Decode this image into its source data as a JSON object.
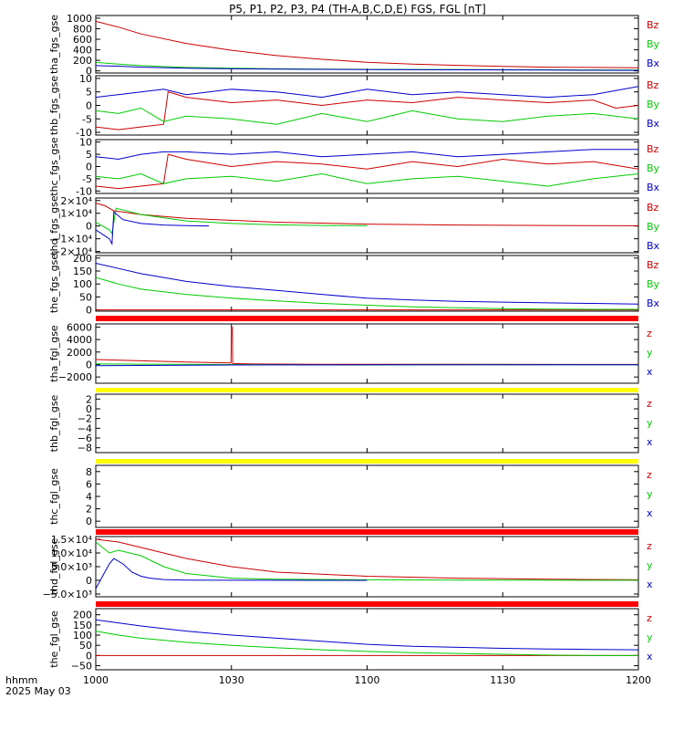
{
  "title": "P5, P1, P2, P3, P4 (TH-A,B,C,D,E) FGS, FGL [nT]",
  "time_axis": {
    "label_top": "hhmm",
    "label_bottom": "2025 May 03",
    "ticks": [
      "1000",
      "1030",
      "1100",
      "1130",
      "1200"
    ],
    "tick_values_min": [
      0,
      30,
      60,
      90,
      120
    ],
    "range_min": [
      0,
      120
    ]
  },
  "colors": {
    "z": "#cc0000",
    "y": "#00cc00",
    "x": "#0000cc",
    "red_bar": "#ff0000",
    "yellow_bar": "#ffff00"
  },
  "chart_data": [
    {
      "type": "line",
      "id": "tha_fgs",
      "ylabel": "tha_fgs_gse",
      "legend": [
        "Bz",
        "By",
        "Bx"
      ],
      "ylim": [
        -40,
        1050
      ],
      "yticks": [
        0,
        200,
        400,
        600,
        800,
        1000
      ],
      "ytick_labels": [
        "0",
        "200",
        "400",
        "600",
        "800",
        "1000"
      ],
      "series": [
        {
          "name": "Bz",
          "color": "z",
          "x": [
            0,
            5,
            10,
            20,
            30,
            40,
            50,
            60,
            70,
            80,
            90,
            100,
            110,
            120
          ],
          "y": [
            940,
            830,
            700,
            520,
            390,
            290,
            220,
            165,
            130,
            105,
            85,
            70,
            65,
            60
          ]
        },
        {
          "name": "By",
          "color": "y",
          "x": [
            0,
            5,
            10,
            20,
            30,
            40,
            50,
            60,
            70,
            80,
            90,
            100,
            110,
            120
          ],
          "y": [
            160,
            130,
            100,
            65,
            50,
            40,
            35,
            30,
            28,
            25,
            22,
            20,
            18,
            15
          ]
        },
        {
          "name": "Bx",
          "color": "x",
          "x": [
            0,
            5,
            10,
            20,
            30,
            40,
            50,
            60,
            70,
            80,
            90,
            100,
            110,
            120
          ],
          "y": [
            100,
            90,
            70,
            50,
            40,
            35,
            30,
            25,
            22,
            20,
            18,
            15,
            12,
            10
          ]
        }
      ]
    },
    {
      "type": "line",
      "id": "thb_fgs",
      "ylabel": "thb_fgs_gse",
      "legend": [
        "Bz",
        "By",
        "Bx"
      ],
      "ylim": [
        -11,
        11
      ],
      "yticks": [
        -10,
        -5,
        0,
        5,
        10
      ],
      "ytick_labels": [
        "-10",
        "-5",
        "0",
        "5",
        "10"
      ],
      "series": [
        {
          "name": "Bz",
          "color": "z",
          "x": [
            0,
            5,
            10,
            15,
            16,
            20,
            30,
            40,
            50,
            60,
            70,
            80,
            90,
            100,
            110,
            115,
            120
          ],
          "y": [
            -8,
            -9,
            -8,
            -7,
            5,
            3,
            1,
            2,
            0,
            2,
            1,
            3,
            2,
            1,
            2,
            -1,
            0
          ]
        },
        {
          "name": "By",
          "color": "y",
          "x": [
            0,
            5,
            10,
            15,
            20,
            30,
            40,
            50,
            60,
            70,
            80,
            90,
            100,
            110,
            120
          ],
          "y": [
            -2,
            -3,
            -1,
            -6,
            -4,
            -5,
            -7,
            -3,
            -6,
            -2,
            -5,
            -6,
            -4,
            -3,
            -5
          ]
        },
        {
          "name": "Bx",
          "color": "x",
          "x": [
            0,
            5,
            10,
            15,
            20,
            30,
            40,
            50,
            60,
            70,
            80,
            90,
            100,
            110,
            120
          ],
          "y": [
            3,
            4,
            5,
            6,
            4,
            6,
            5,
            3,
            6,
            4,
            5,
            4,
            3,
            4,
            7
          ]
        }
      ]
    },
    {
      "type": "line",
      "id": "thc_fgs",
      "ylabel": "thc_fgs_gse",
      "legend": [
        "Bz",
        "By",
        "Bx"
      ],
      "ylim": [
        -11,
        11
      ],
      "yticks": [
        -10,
        -5,
        0,
        5,
        10
      ],
      "ytick_labels": [
        "-10",
        "-5",
        "0",
        "5",
        "10"
      ],
      "series": [
        {
          "name": "Bz",
          "color": "z",
          "x": [
            0,
            5,
            10,
            15,
            16,
            20,
            30,
            40,
            50,
            60,
            70,
            80,
            90,
            100,
            110,
            120
          ],
          "y": [
            -8,
            -9,
            -8,
            -7,
            5,
            3,
            0,
            2,
            1,
            -1,
            2,
            0,
            3,
            1,
            2,
            -1
          ]
        },
        {
          "name": "By",
          "color": "y",
          "x": [
            0,
            5,
            10,
            15,
            20,
            30,
            40,
            50,
            60,
            70,
            80,
            90,
            100,
            110,
            120
          ],
          "y": [
            -4,
            -5,
            -3,
            -7,
            -5,
            -4,
            -6,
            -3,
            -7,
            -5,
            -4,
            -6,
            -8,
            -5,
            -3
          ]
        },
        {
          "name": "Bx",
          "color": "x",
          "x": [
            0,
            5,
            10,
            15,
            20,
            30,
            40,
            50,
            60,
            70,
            80,
            90,
            100,
            110,
            120
          ],
          "y": [
            4,
            3,
            5,
            6,
            6,
            5,
            6,
            4,
            5,
            6,
            4,
            5,
            6,
            7,
            7
          ]
        }
      ]
    },
    {
      "type": "line",
      "id": "thd_fgs",
      "ylabel": "thd_fgs_gse",
      "legend": [
        "Bz",
        "By",
        "Bx"
      ],
      "ylim": [
        -21000,
        22000
      ],
      "yticks": [
        -20000,
        -10000,
        0,
        10000,
        20000
      ],
      "ytick_labels": [
        "−2×10⁴",
        "−1×10⁴",
        "0",
        "1×10⁴",
        "2×10⁴"
      ],
      "series": [
        {
          "name": "Bz",
          "color": "z",
          "x": [
            0,
            2,
            4,
            10,
            20,
            40,
            60,
            80,
            100,
            120
          ],
          "y": [
            18000,
            16000,
            12000,
            9000,
            6000,
            3000,
            1500,
            800,
            400,
            200
          ]
        },
        {
          "name": "By",
          "color": "y",
          "x": [
            0,
            3,
            3.6,
            4.5,
            10,
            20,
            30,
            40,
            50,
            60
          ],
          "y": [
            3000,
            -3000,
            -6000,
            14000,
            9000,
            4000,
            2000,
            900,
            400,
            200
          ]
        },
        {
          "name": "Bx",
          "color": "x",
          "x": [
            0,
            3,
            3.6,
            4,
            6,
            10,
            15,
            20,
            25
          ],
          "y": [
            -3000,
            -10000,
            -14000,
            11000,
            5000,
            2000,
            800,
            300,
            100
          ]
        }
      ]
    },
    {
      "type": "line",
      "id": "the_fgs",
      "ylabel": "the_fgs_gse",
      "legend": [
        "Bz",
        "By",
        "Bx"
      ],
      "ylim": [
        -5,
        210
      ],
      "yticks": [
        0,
        50,
        100,
        150,
        200
      ],
      "ytick_labels": [
        "0",
        "50",
        "100",
        "150",
        "200"
      ],
      "series": [
        {
          "name": "Bz",
          "color": "z",
          "x": [
            0,
            120
          ],
          "y": [
            0,
            0
          ]
        },
        {
          "name": "By",
          "color": "y",
          "x": [
            0,
            5,
            10,
            20,
            30,
            40,
            50,
            60,
            70,
            80,
            90,
            100,
            110,
            120
          ],
          "y": [
            125,
            100,
            80,
            60,
            45,
            35,
            25,
            18,
            12,
            8,
            5,
            3,
            2,
            2
          ]
        },
        {
          "name": "Bx",
          "color": "x",
          "x": [
            0,
            5,
            10,
            20,
            30,
            40,
            50,
            60,
            70,
            80,
            90,
            100,
            110,
            120
          ],
          "y": [
            180,
            160,
            140,
            110,
            90,
            75,
            60,
            45,
            38,
            33,
            30,
            27,
            25,
            22
          ]
        }
      ]
    },
    {
      "type": "line",
      "id": "tha_fgl",
      "ylabel": "tha_fgl_gse",
      "legend": [
        "z",
        "y",
        "x"
      ],
      "ylim": [
        -3000,
        6500
      ],
      "yticks": [
        -2000,
        0,
        2000,
        4000,
        6000
      ],
      "ytick_labels": [
        "−2000",
        "0",
        "2000",
        "4000",
        "6000"
      ],
      "series": [
        {
          "name": "z",
          "color": "z",
          "x": [
            0,
            10,
            20,
            29.9,
            30,
            30.2,
            30.3,
            35,
            50,
            80,
            120
          ],
          "y": [
            800,
            600,
            400,
            250,
            6000,
            6000,
            150,
            80,
            40,
            20,
            10
          ]
        },
        {
          "name": "y",
          "color": "y",
          "x": [
            0,
            10,
            20,
            30,
            40,
            60,
            80,
            120
          ],
          "y": [
            100,
            50,
            20,
            0,
            -50,
            -80,
            -50,
            -30
          ]
        },
        {
          "name": "x",
          "color": "x",
          "x": [
            0,
            10,
            20,
            30,
            40,
            60,
            80,
            120
          ],
          "y": [
            -200,
            -150,
            -100,
            -80,
            -60,
            -50,
            -40,
            -30
          ]
        }
      ]
    },
    {
      "type": "line",
      "id": "thb_fgl",
      "ylabel": "thb_fgl_gse",
      "legend": [
        "z",
        "y",
        "x"
      ],
      "ylim": [
        -9,
        3
      ],
      "yticks": [
        -8,
        -6,
        -4,
        -2,
        0,
        2
      ],
      "ytick_labels": [
        "−8",
        "−6",
        "−4",
        "−2",
        "0",
        "2"
      ],
      "series": []
    },
    {
      "type": "line",
      "id": "thc_fgl",
      "ylabel": "thc_fgl_gse",
      "legend": [
        "z",
        "y",
        "x"
      ],
      "ylim": [
        -1,
        9
      ],
      "yticks": [
        0,
        2,
        4,
        6,
        8
      ],
      "ytick_labels": [
        "0",
        "2",
        "4",
        "6",
        "8"
      ],
      "series": []
    },
    {
      "type": "line",
      "id": "thd_fgl",
      "ylabel": "thd_fgl_gse",
      "legend": [
        "z",
        "y",
        "x"
      ],
      "ylim": [
        -6000,
        16000
      ],
      "yticks": [
        -5000,
        0,
        5000,
        10000,
        15000
      ],
      "ytick_labels": [
        "−5.0×10³",
        "0",
        "5.0×10³",
        "1.0×10⁴",
        "1.5×10⁴"
      ],
      "series": [
        {
          "name": "z",
          "color": "z",
          "x": [
            0,
            5,
            10,
            20,
            30,
            40,
            60,
            80,
            100,
            120
          ],
          "y": [
            15000,
            14000,
            12000,
            8000,
            5000,
            3000,
            1500,
            800,
            400,
            200
          ]
        },
        {
          "name": "y",
          "color": "y",
          "x": [
            0,
            3,
            5,
            10,
            15,
            20,
            30,
            40,
            60,
            80,
            120
          ],
          "y": [
            14000,
            10000,
            11000,
            9000,
            5000,
            2500,
            800,
            400,
            200,
            100,
            50
          ]
        },
        {
          "name": "x",
          "color": "x",
          "x": [
            0,
            1,
            2,
            3,
            4,
            6,
            8,
            10,
            12,
            15,
            20,
            30,
            60
          ],
          "y": [
            -3000,
            0,
            3000,
            6000,
            8000,
            6000,
            3000,
            1500,
            800,
            300,
            100,
            50,
            0
          ]
        }
      ]
    },
    {
      "type": "line",
      "id": "the_fgl",
      "ylabel": "the_fgl_gse",
      "legend": [
        "z",
        "y",
        "x"
      ],
      "ylim": [
        -70,
        230
      ],
      "yticks": [
        -50,
        0,
        50,
        100,
        150,
        200
      ],
      "ytick_labels": [
        "−50",
        "0",
        "50",
        "100",
        "150",
        "200"
      ],
      "series": [
        {
          "name": "z",
          "color": "z",
          "x": [
            0,
            120
          ],
          "y": [
            0,
            0
          ]
        },
        {
          "name": "y",
          "color": "y",
          "x": [
            0,
            5,
            10,
            20,
            30,
            40,
            50,
            60,
            70,
            80,
            90,
            100,
            110,
            120
          ],
          "y": [
            120,
            100,
            85,
            65,
            50,
            38,
            28,
            20,
            14,
            10,
            6,
            2,
            0,
            0
          ]
        },
        {
          "name": "x",
          "color": "x",
          "x": [
            0,
            5,
            10,
            20,
            30,
            40,
            50,
            60,
            70,
            80,
            90,
            100,
            110,
            120
          ],
          "y": [
            175,
            160,
            145,
            120,
            100,
            85,
            70,
            55,
            45,
            40,
            35,
            32,
            30,
            28
          ]
        }
      ]
    }
  ],
  "separators": [
    {
      "after_panel": 4,
      "color": "red_bar"
    },
    {
      "after_panel": 5,
      "color": "yellow_bar"
    },
    {
      "after_panel": 6,
      "color": "yellow_bar"
    },
    {
      "after_panel": 7,
      "color": "red_bar"
    },
    {
      "after_panel": 8,
      "color": "red_bar"
    }
  ]
}
